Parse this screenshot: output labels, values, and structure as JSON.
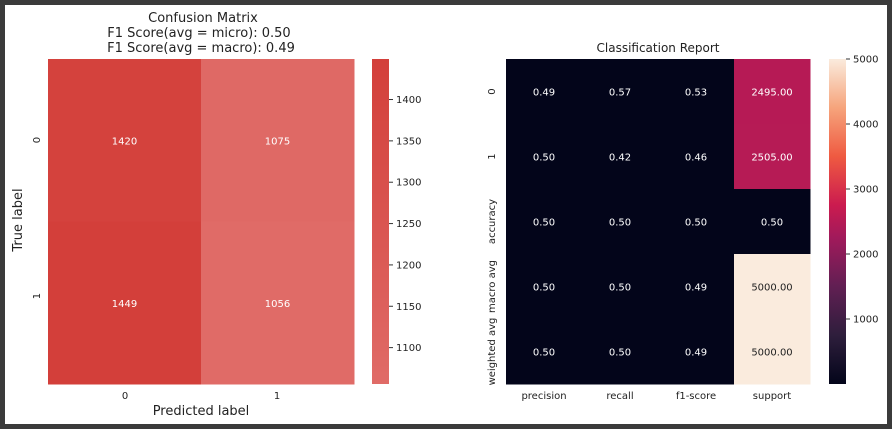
{
  "chart_data": [
    {
      "type": "heatmap",
      "title_lines": [
        "Confusion Matrix",
        "F1 Score(avg = micro): 0.50",
        "F1 Score(avg = macro): 0.49"
      ],
      "xlabel": "Predicted label",
      "ylabel": "True label",
      "x_tick_labels": [
        "0",
        "1"
      ],
      "y_tick_labels": [
        "0",
        "1"
      ],
      "values": [
        [
          1420,
          1075
        ],
        [
          1449,
          1056
        ]
      ],
      "value_labels": [
        [
          "1420",
          "1075"
        ],
        [
          "1449",
          "1056"
        ]
      ],
      "colorbar": {
        "range": [
          1056,
          1449
        ],
        "ticks": [
          1100,
          1150,
          1200,
          1250,
          1300,
          1350,
          1400
        ],
        "tick_labels": [
          "1100",
          "1150",
          "1200",
          "1250",
          "1300",
          "1350",
          "1400"
        ],
        "colors": {
          "low": "#e06b67",
          "high": "#d33f3a"
        }
      }
    },
    {
      "type": "heatmap",
      "title": "Classification Report",
      "xlabel": "",
      "ylabel": "",
      "x_tick_labels": [
        "precision",
        "recall",
        "f1-score",
        "support"
      ],
      "y_tick_labels": [
        "0",
        "1",
        "accuracy",
        "macro avg",
        "weighted avg"
      ],
      "cell_labels": [
        [
          "0.49",
          "0.57",
          "0.53",
          "2495.00"
        ],
        [
          "0.50",
          "0.42",
          "0.46",
          "2505.00"
        ],
        [
          "0.50",
          "0.50",
          "0.50",
          "0.50"
        ],
        [
          "0.50",
          "0.50",
          "0.49",
          "5000.00"
        ],
        [
          "0.50",
          "0.50",
          "0.49",
          "5000.00"
        ]
      ],
      "values": [
        [
          0.49,
          0.57,
          0.53,
          2495.0
        ],
        [
          0.5,
          0.42,
          0.46,
          2505.0
        ],
        [
          0.5,
          0.5,
          0.5,
          0.5
        ],
        [
          0.5,
          0.5,
          0.49,
          5000.0
        ],
        [
          0.5,
          0.5,
          0.49,
          5000.0
        ]
      ],
      "colorbar": {
        "range": [
          0,
          5000
        ],
        "ticks": [
          1000,
          2000,
          3000,
          4000,
          5000
        ],
        "tick_labels": [
          "1000",
          "2000",
          "3000",
          "4000",
          "5000"
        ],
        "colormap": "rocket"
      }
    }
  ]
}
